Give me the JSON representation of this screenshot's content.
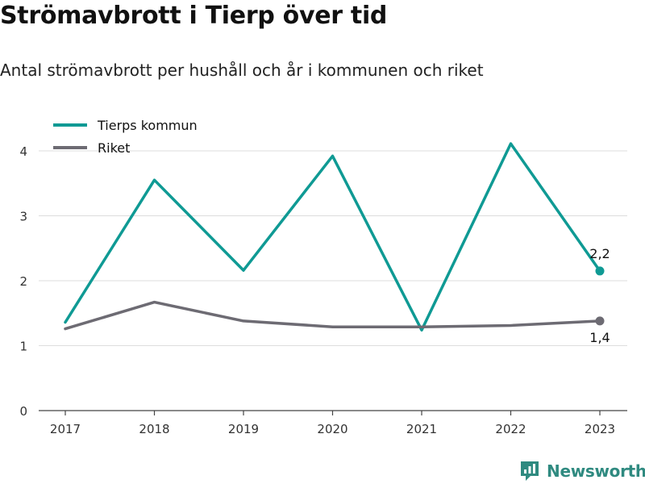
{
  "header": {
    "title": "Strömavbrott i Tierp över tid",
    "subtitle": "Antal strömavbrott per hushåll och år i kommunen och riket"
  },
  "brand": {
    "name": "Newsworthy"
  },
  "colors": {
    "tierp": "#0f9a94",
    "riket": "#6d6b73",
    "grid": "#dddddd",
    "axis": "#444444"
  },
  "chart_data": {
    "type": "line",
    "x": [
      "2017",
      "2018",
      "2019",
      "2020",
      "2021",
      "2022",
      "2023"
    ],
    "ylim": [
      0,
      4.2
    ],
    "yticks": [
      0,
      1,
      2,
      3,
      4
    ],
    "grid": true,
    "legend_position": "top-left",
    "series": [
      {
        "name": "Tierps kommun",
        "color": "#0f9a94",
        "values": [
          1.36,
          3.55,
          2.16,
          3.92,
          1.24,
          4.11,
          2.15
        ],
        "end_label": "2,2"
      },
      {
        "name": "Riket",
        "color": "#6d6b73",
        "values": [
          1.26,
          1.67,
          1.38,
          1.29,
          1.29,
          1.31,
          1.38
        ],
        "end_label": "1,4"
      }
    ]
  }
}
